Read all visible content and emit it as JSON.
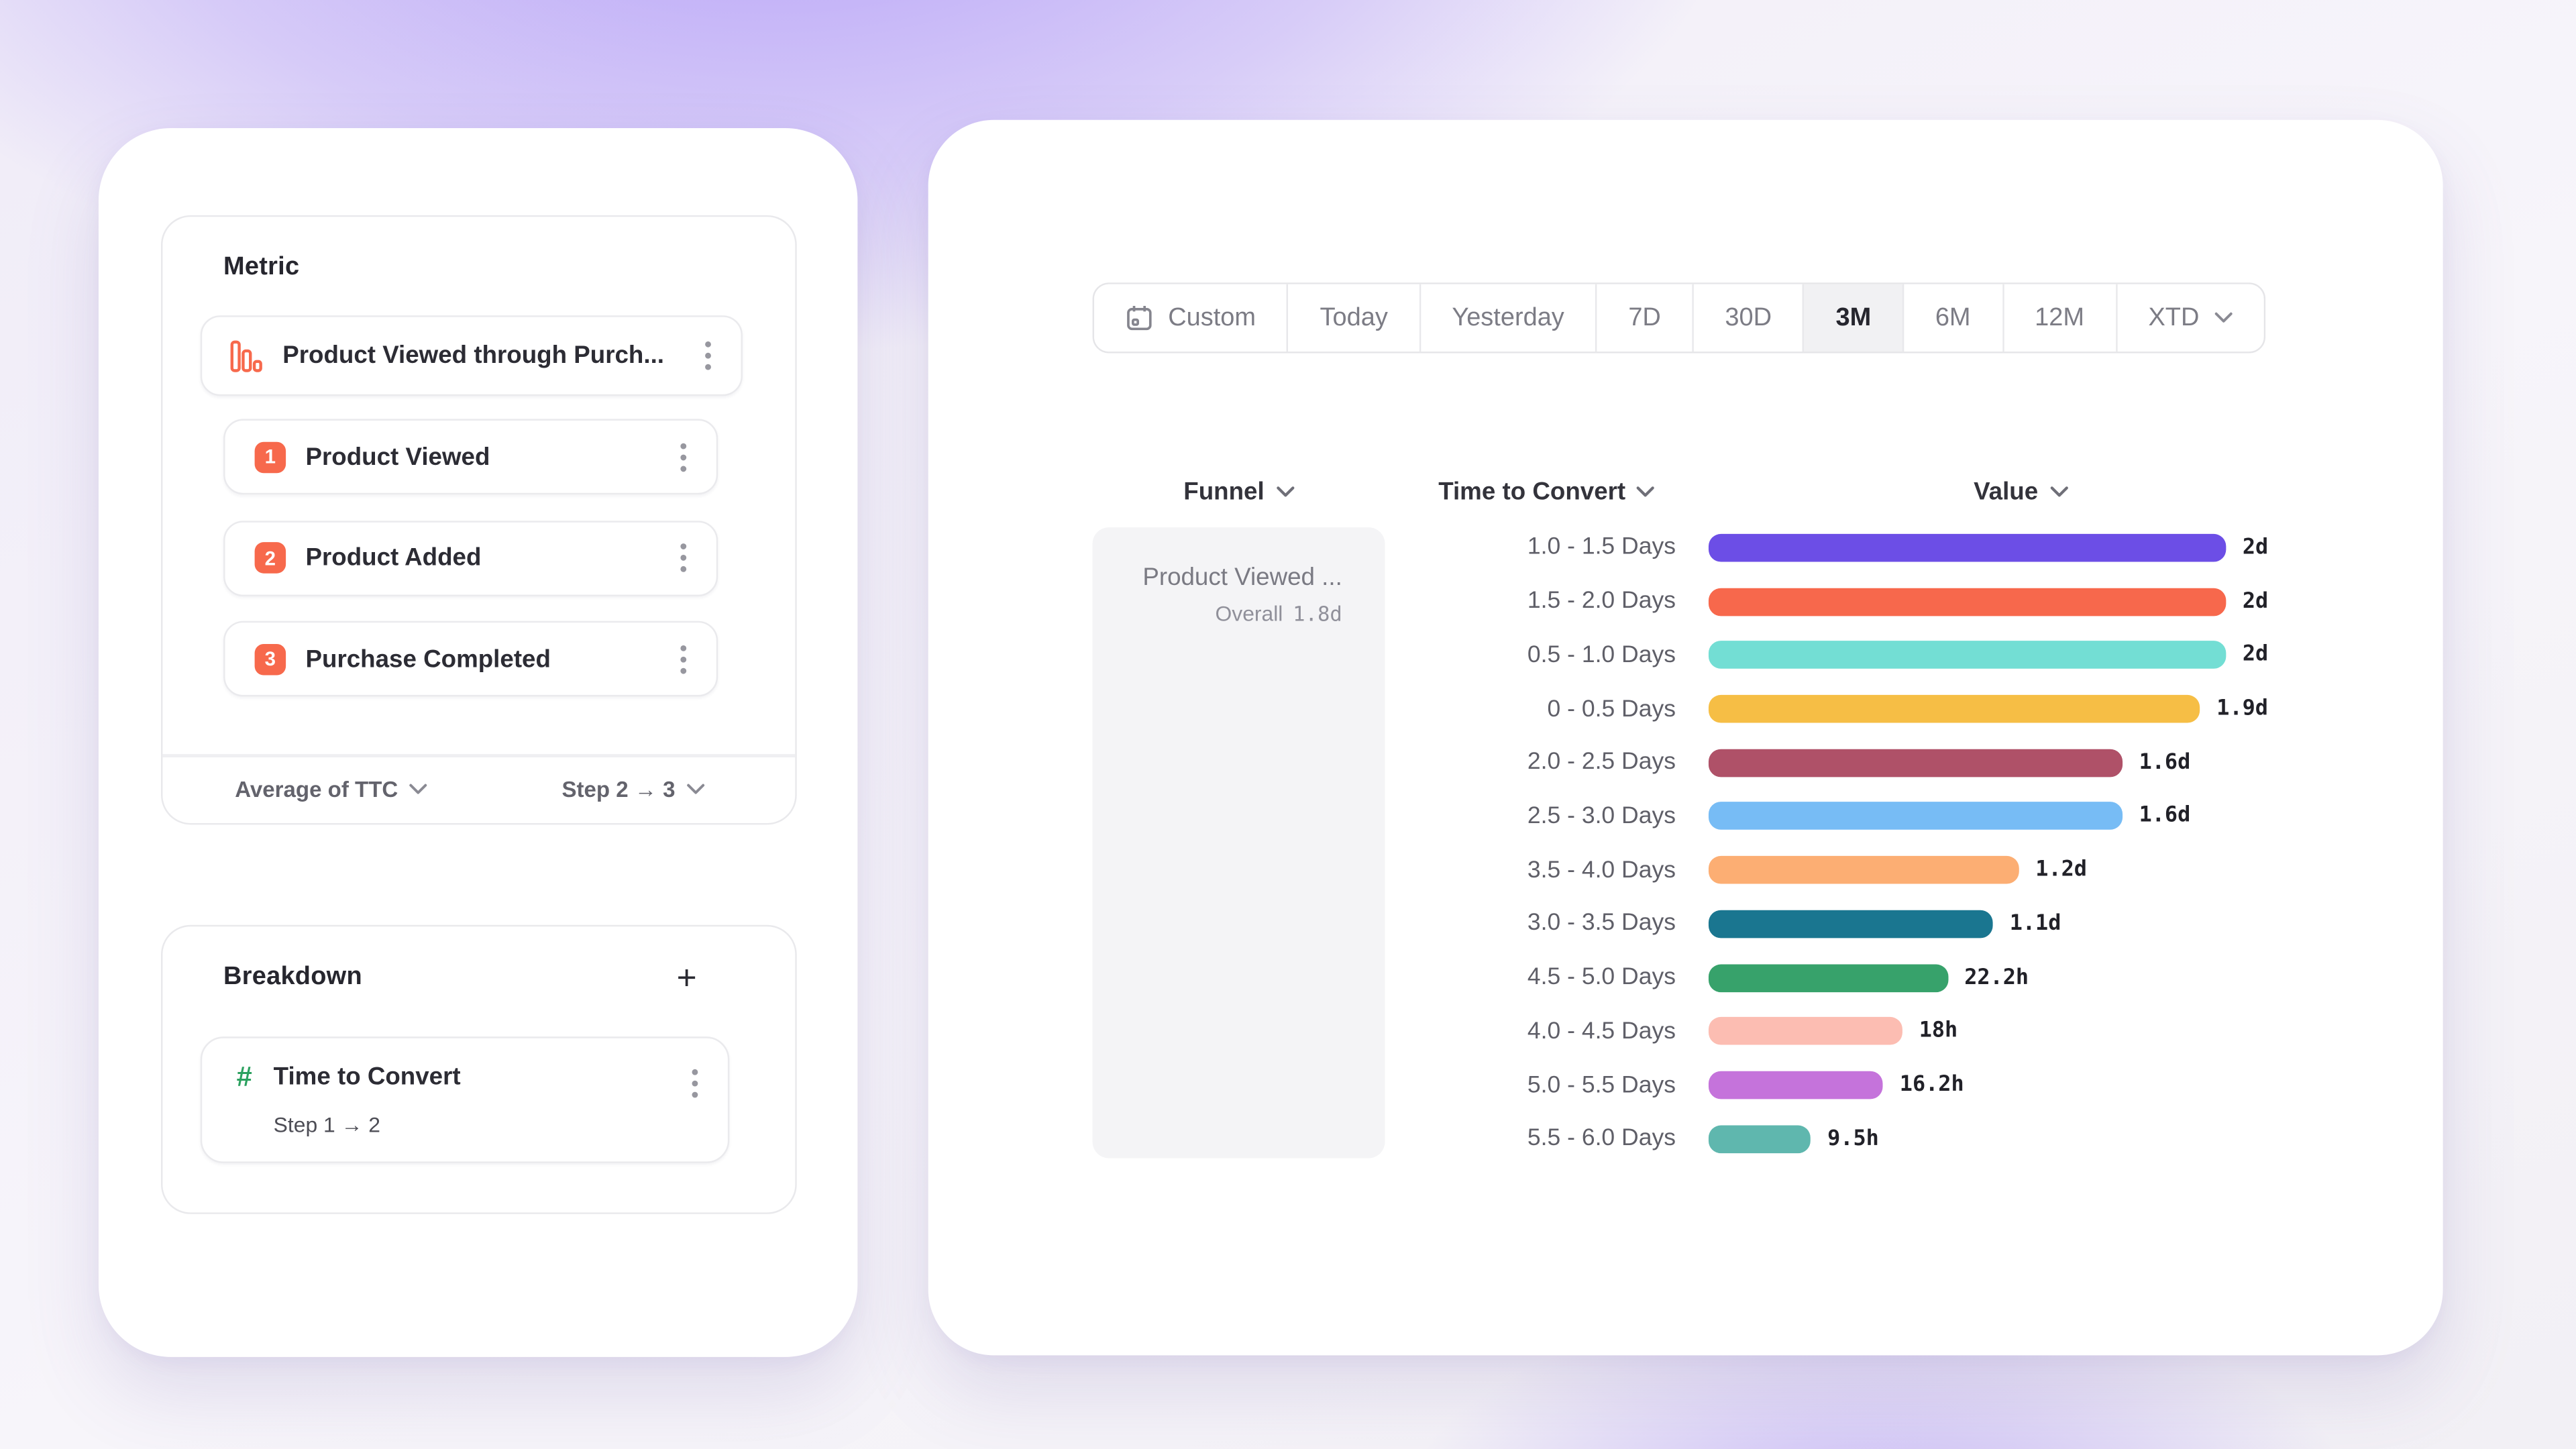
{
  "left_panel": {
    "metric_section": {
      "title": "Metric",
      "funnel": {
        "name": "Product Viewed through Purch...",
        "steps": [
          {
            "number": "1",
            "label": "Product Viewed"
          },
          {
            "number": "2",
            "label": "Product Added"
          },
          {
            "number": "3",
            "label": "Purchase Completed"
          }
        ],
        "aggregation": "Average of TTC",
        "step_range": "Step 2 → 3"
      }
    },
    "breakdown_section": {
      "title": "Breakdown",
      "add_label": "+",
      "hash_glyph": "#",
      "item": {
        "name": "Time to Convert",
        "detail": "Step 1 → 2"
      }
    }
  },
  "right_panel": {
    "date_range": {
      "selected": "3M",
      "segments": [
        {
          "label": "Custom",
          "icon": "calendar"
        },
        {
          "label": "Today"
        },
        {
          "label": "Yesterday"
        },
        {
          "label": "7D"
        },
        {
          "label": "30D"
        },
        {
          "label": "3M"
        },
        {
          "label": "6M"
        },
        {
          "label": "12M"
        },
        {
          "label": "XTD",
          "chevron": true
        }
      ]
    },
    "funnel_cell": {
      "name": "Product Viewed ...",
      "overall_label": "Overall",
      "overall_value": "1.8d"
    }
  },
  "chart_data": {
    "type": "bar",
    "orientation": "horizontal",
    "columns": [
      "Funnel",
      "Time to Convert",
      "Value"
    ],
    "max_hours": 48,
    "rows": [
      {
        "range": "1.0 - 1.5 Days",
        "value": "2d",
        "hours": 48,
        "color": "#6C4EE6"
      },
      {
        "range": "1.5 - 2.0 Days",
        "value": "2d",
        "hours": 48,
        "color": "#F7684C"
      },
      {
        "range": "0.5 - 1.0 Days",
        "value": "2d",
        "hours": 48,
        "color": "#73DED4"
      },
      {
        "range": "0 - 0.5 Days",
        "value": "1.9d",
        "hours": 45.6,
        "color": "#F6BE45"
      },
      {
        "range": "2.0 - 2.5 Days",
        "value": "1.6d",
        "hours": 38.4,
        "color": "#AF5168"
      },
      {
        "range": "2.5 - 3.0 Days",
        "value": "1.6d",
        "hours": 38.4,
        "color": "#77BCF5"
      },
      {
        "range": "3.5 - 4.0 Days",
        "value": "1.2d",
        "hours": 28.8,
        "color": "#FCAE73"
      },
      {
        "range": "3.0 - 3.5 Days",
        "value": "1.1d",
        "hours": 26.4,
        "color": "#1A7690"
      },
      {
        "range": "4.5 - 5.0 Days",
        "value": "22.2h",
        "hours": 22.2,
        "color": "#37A26B"
      },
      {
        "range": "4.0 - 4.5 Days",
        "value": "18h",
        "hours": 18,
        "color": "#FCBDB2"
      },
      {
        "range": "5.0 - 5.5 Days",
        "value": "16.2h",
        "hours": 16.2,
        "color": "#C573DB"
      },
      {
        "range": "5.5 - 6.0 Days",
        "value": "9.5h",
        "hours": 9.5,
        "color": "#5FB7AE"
      }
    ]
  }
}
